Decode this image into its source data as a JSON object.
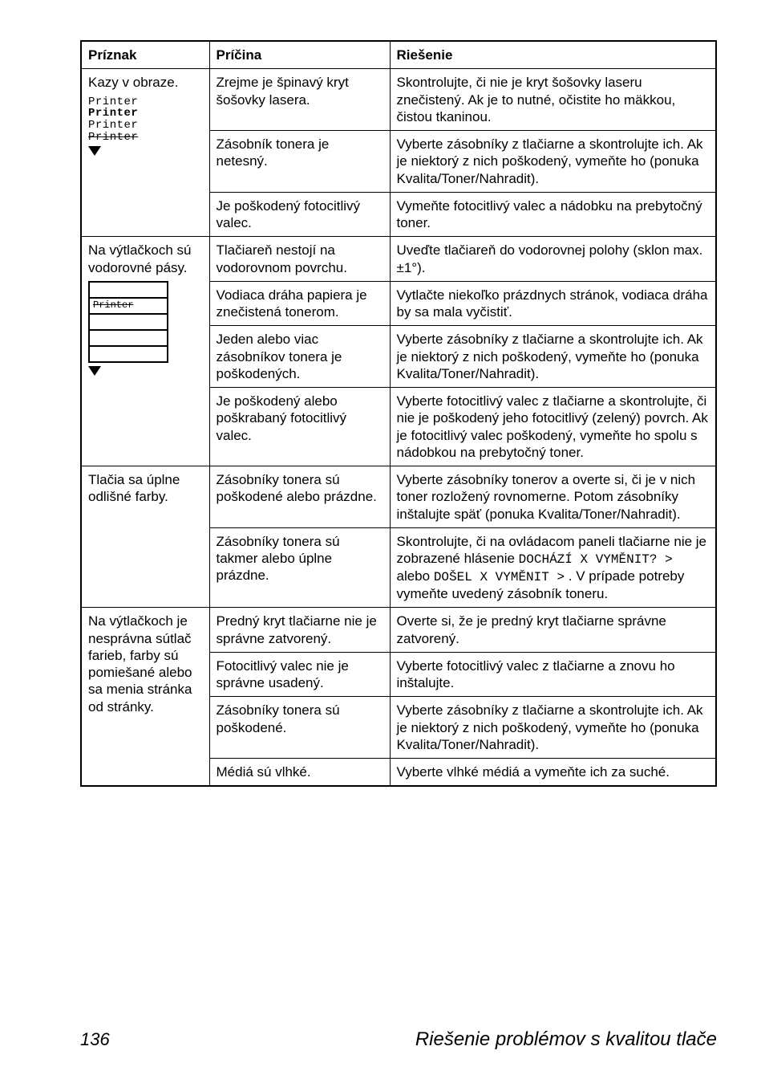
{
  "headers": {
    "c1": "Príznak",
    "c2": "Príčina",
    "c3": "Riešenie"
  },
  "rows": [
    {
      "priznak": "Kazy v obraze.",
      "subs": [
        {
          "cause": "Zrejme je špinavý kryt šošovky lasera.",
          "fix": "Skontrolujte, či nie je kryt šošovky laseru znečistený. Ak je to nutné, očistite ho mäkkou, čistou tkaninou."
        },
        {
          "cause": "Zásobník tonera je netesný.",
          "fix": "Vyberte zásobníky z tlačiarne a skontrolujte ich. Ak je niektorý z nich poškodený, vymeňte ho (ponuka Kvalita/Toner/Nahradit)."
        },
        {
          "cause": "Je poškodený fotocitlivý valec.",
          "fix": "Vymeňte fotocitlivý valec a nádobku na prebytočný toner."
        }
      ]
    },
    {
      "priznak": "Na výtlačkoch sú vodorovné pásy.",
      "subs": [
        {
          "cause": "Tlačiareň nestojí na vodorovnom povrchu.",
          "fix": "Uveďte tlačiareň do vodorovnej polohy (sklon max. ±1°)."
        },
        {
          "cause": "Vodiaca dráha papiera je znečistená tonerom.",
          "fix": "Vytlačte niekoľko prázdnych stránok, vodiaca dráha by sa mala vyčistiť."
        },
        {
          "cause": "Jeden alebo viac zásobníkov tonera je poškodených.",
          "fix": "Vyberte zásobníky z tlačiarne a skontrolujte ich. Ak je niektorý z nich poškodený, vymeňte ho (ponuka Kvalita/Toner/Nahradit)."
        },
        {
          "cause": "Je poškodený alebo poškrabaný fotocitlivý valec.",
          "fix": "Vyberte fotocitlivý valec z tlačiarne a skontrolujte, či nie je poškodený jeho fotocitlivý (zelený) povrch. Ak je fotocitlivý valec poškodený, vymeňte ho spolu s nádobkou na prebytočný toner."
        }
      ]
    },
    {
      "priznak": "Tlačia sa úplne odlišné farby.",
      "subs": [
        {
          "cause": "Zásobníky tonera sú poškodené alebo prázdne.",
          "fix": "Vyberte zásobníky tonerov a overte si, či je v nich toner rozložený rovnomerne. Potom zásobníky inštalujte späť (ponuka Kvalita/Toner/Nahradit)."
        },
        {
          "cause": "Zásobníky tonera sú takmer alebo úplne prázdne.",
          "fix_pre": "Skontrolujte, či na ovládacom paneli tlačiarne nie je zobrazené hlásenie ",
          "fix_mono1": "DOCHÁZÍ X VYMĚNIT? >",
          "fix_mid": " alebo ",
          "fix_mono2": "DOŠEL X VYMĚNIT >",
          "fix_post": ". V prípade potreby vymeňte uvedený zásobník toneru."
        }
      ]
    },
    {
      "priznak": "Na výtlačkoch je nesprávna sútlač farieb, farby sú pomiešané alebo sa menia stránka od stránky.",
      "subs": [
        {
          "cause": "Predný kryt tlačiarne nie je správne zatvorený.",
          "fix": "Overte si, že je predný kryt tlačiarne správne zatvorený."
        },
        {
          "cause": "Fotocitlivý valec nie je správne usadený.",
          "fix": "Vyberte fotocitlivý valec z tlačiarne a znovu ho inštalujte."
        },
        {
          "cause": "Zásobníky tonera sú poškodené.",
          "fix": "Vyberte zásobníky z tlačiarne a skontrolujte ich. Ak je niektorý z nich poškodený, vymeňte ho (ponuka Kvalita/Toner/Nahradit)."
        },
        {
          "cause": "Médiá sú vlhké.",
          "fix": "Vyberte vlhké médiá a vymeňte ich za suché."
        }
      ]
    }
  ],
  "printer_lines": [
    "Printer",
    "Printer",
    "Printer",
    "Printer"
  ],
  "band_label": "Printer",
  "footer": {
    "page": "136",
    "title": "Riešenie problémov s kvalitou tlače"
  }
}
